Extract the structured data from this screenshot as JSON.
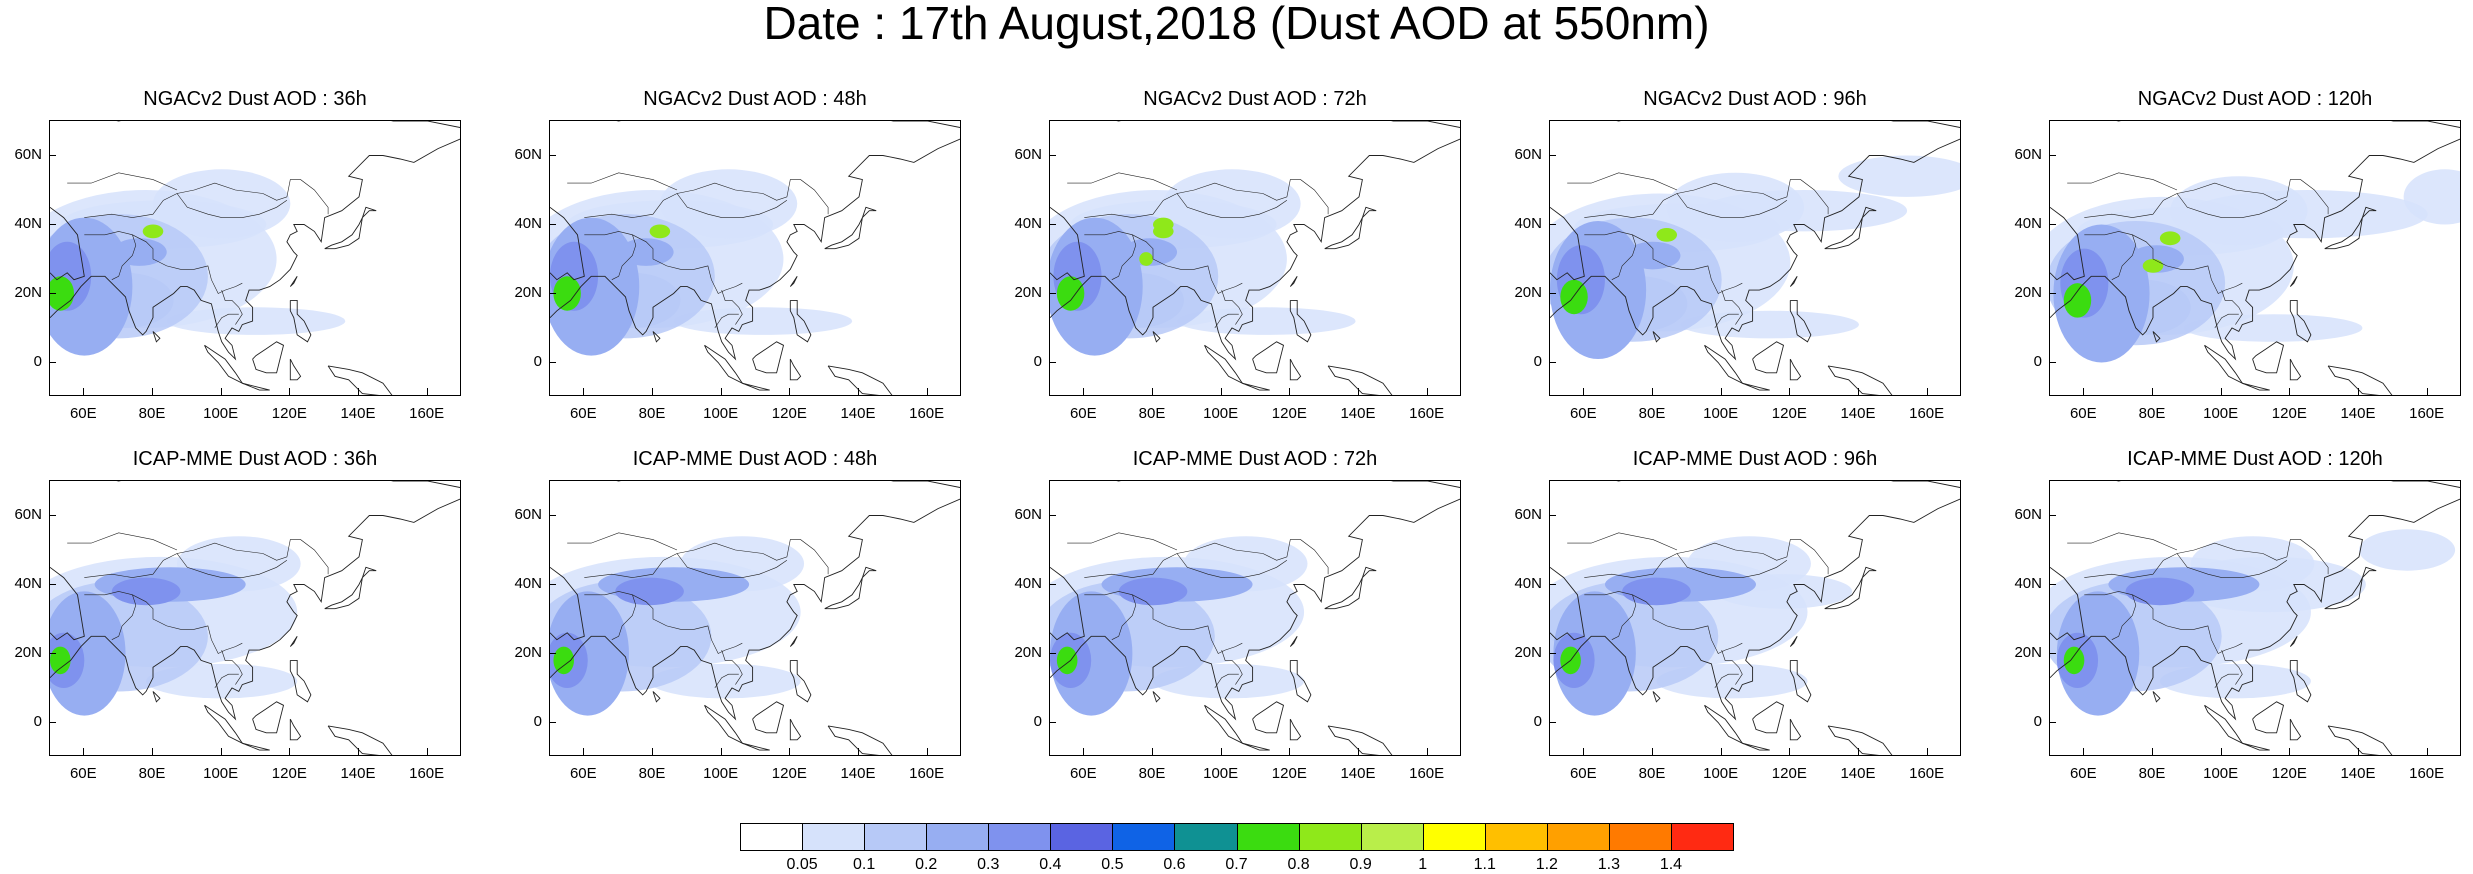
{
  "title": "Date : 17th August,2018 (Dust AOD at 550nm)",
  "axes": {
    "y_ticks": [
      "60N",
      "40N",
      "20N",
      "0"
    ],
    "x_ticks": [
      "60E",
      "80E",
      "100E",
      "120E",
      "140E",
      "160E"
    ]
  },
  "panels": [
    {
      "title": "NGACv2 Dust AOD : 36h",
      "model": "NGACv2",
      "lead": "36h"
    },
    {
      "title": "NGACv2 Dust AOD : 48h",
      "model": "NGACv2",
      "lead": "48h"
    },
    {
      "title": "NGACv2 Dust AOD : 72h",
      "model": "NGACv2",
      "lead": "72h"
    },
    {
      "title": "NGACv2 Dust AOD : 96h",
      "model": "NGACv2",
      "lead": "96h"
    },
    {
      "title": "NGACv2 Dust AOD : 120h",
      "model": "NGACv2",
      "lead": "120h"
    },
    {
      "title": "ICAP-MME Dust AOD : 36h",
      "model": "ICAP-MME",
      "lead": "36h"
    },
    {
      "title": "ICAP-MME Dust AOD : 48h",
      "model": "ICAP-MME",
      "lead": "48h"
    },
    {
      "title": "ICAP-MME Dust AOD : 72h",
      "model": "ICAP-MME",
      "lead": "72h"
    },
    {
      "title": "ICAP-MME Dust AOD : 96h",
      "model": "ICAP-MME",
      "lead": "96h"
    },
    {
      "title": "ICAP-MME Dust AOD : 120h",
      "model": "ICAP-MME",
      "lead": "120h"
    }
  ],
  "colorbar": {
    "labels": [
      "0.05",
      "0.1",
      "0.2",
      "0.3",
      "0.4",
      "0.5",
      "0.6",
      "0.7",
      "0.8",
      "0.9",
      "1",
      "1.1",
      "1.2",
      "1.3",
      "1.4"
    ],
    "colors": [
      "#ffffff",
      "#d6e2fb",
      "#b7c9f7",
      "#97aef2",
      "#7f92ee",
      "#5a64e2",
      "#0f63e6",
      "#0f9193",
      "#3bdc10",
      "#8fe81a",
      "#b9ee4a",
      "#ffff00",
      "#ffbf00",
      "#ffa000",
      "#ff7a00",
      "#ff2a12"
    ]
  }
}
